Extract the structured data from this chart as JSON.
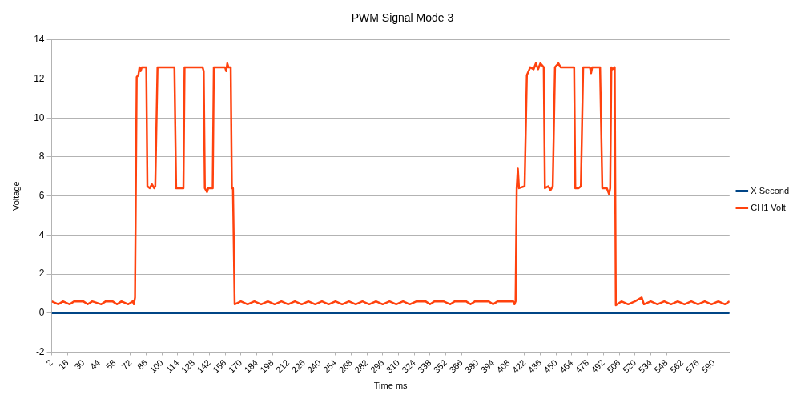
{
  "chart_data": {
    "type": "line",
    "title": "PWM Signal Mode 3",
    "xlabel": "Time ms",
    "ylabel": "Voltage",
    "xlim": [
      2,
      604
    ],
    "xticks": [
      2,
      16,
      30,
      44,
      58,
      72,
      86,
      100,
      114,
      128,
      142,
      156,
      170,
      184,
      198,
      212,
      226,
      240,
      254,
      268,
      282,
      296,
      310,
      324,
      338,
      352,
      366,
      380,
      394,
      408,
      422,
      436,
      450,
      464,
      478,
      492,
      506,
      520,
      534,
      548,
      562,
      576,
      590
    ],
    "ylim": [
      -2,
      14
    ],
    "yticks": [
      -2,
      0,
      2,
      4,
      6,
      8,
      10,
      12,
      14
    ],
    "grid": "y",
    "legend": "right",
    "marker": "none",
    "line_style": "solid",
    "series": [
      {
        "name": "X Second",
        "color": "#004586",
        "x": [
          2,
          604
        ],
        "values": [
          0,
          0
        ]
      },
      {
        "name": "CH1 Volt",
        "color": "#ff420e",
        "x": [
          2,
          8,
          12,
          18,
          22,
          30,
          34,
          38,
          46,
          50,
          56,
          60,
          64,
          70,
          74,
          75,
          76,
          77.5,
          79,
          80,
          81,
          82,
          86,
          87,
          89,
          91,
          93,
          94,
          96,
          111,
          112.5,
          119,
          120,
          136,
          137,
          138,
          140,
          141,
          145,
          146,
          156,
          157,
          158,
          159,
          161,
          162,
          163,
          164.5,
          170,
          176,
          182,
          188,
          194,
          200,
          206,
          212,
          218,
          224,
          230,
          236,
          242,
          248,
          254,
          260,
          266,
          272,
          278,
          284,
          290,
          296,
          302,
          308,
          314,
          320,
          326,
          334,
          338,
          342,
          350,
          356,
          360,
          370,
          374,
          378,
          390,
          394,
          398,
          412,
          413,
          414,
          415,
          416,
          417,
          422,
          424,
          427,
          430,
          432,
          434,
          436,
          439,
          440,
          443,
          445,
          447,
          449,
          452,
          454,
          466,
          467,
          470,
          472,
          474,
          480,
          481,
          482,
          489,
          491,
          495,
          497,
          498,
          499,
          500,
          502,
          503,
          508,
          514,
          520,
          526,
          528,
          534,
          540,
          546,
          552,
          558,
          564,
          570,
          576,
          582,
          588,
          594,
          600,
          604
        ],
        "values": [
          0.6,
          0.45,
          0.6,
          0.45,
          0.6,
          0.6,
          0.45,
          0.6,
          0.45,
          0.6,
          0.6,
          0.45,
          0.6,
          0.45,
          0.6,
          0.45,
          0.8,
          12.1,
          12.2,
          12.6,
          12.4,
          12.6,
          12.6,
          6.5,
          6.4,
          6.6,
          6.4,
          6.5,
          12.6,
          12.6,
          6.4,
          6.4,
          12.6,
          12.6,
          12.4,
          6.4,
          6.2,
          6.4,
          6.4,
          12.6,
          12.6,
          12.4,
          12.8,
          12.6,
          12.6,
          6.4,
          6.4,
          0.45,
          0.6,
          0.45,
          0.6,
          0.45,
          0.6,
          0.45,
          0.6,
          0.45,
          0.6,
          0.45,
          0.6,
          0.45,
          0.6,
          0.45,
          0.6,
          0.45,
          0.6,
          0.45,
          0.6,
          0.45,
          0.6,
          0.45,
          0.6,
          0.45,
          0.6,
          0.45,
          0.6,
          0.6,
          0.45,
          0.6,
          0.6,
          0.45,
          0.6,
          0.6,
          0.45,
          0.6,
          0.6,
          0.45,
          0.6,
          0.6,
          0.45,
          0.6,
          6.4,
          7.4,
          6.4,
          6.5,
          12.2,
          12.6,
          12.5,
          12.8,
          12.5,
          12.8,
          12.6,
          6.4,
          6.5,
          6.3,
          6.5,
          12.6,
          12.8,
          12.6,
          12.6,
          6.4,
          6.4,
          6.5,
          12.6,
          12.6,
          12.3,
          12.6,
          12.6,
          6.4,
          6.4,
          6.1,
          6.4,
          12.6,
          12.5,
          12.6,
          0.4,
          0.6,
          0.45,
          0.6,
          0.8,
          0.45,
          0.6,
          0.45,
          0.6,
          0.45,
          0.6,
          0.45,
          0.6,
          0.45,
          0.6,
          0.45,
          0.6,
          0.45,
          0.6
        ]
      }
    ]
  }
}
